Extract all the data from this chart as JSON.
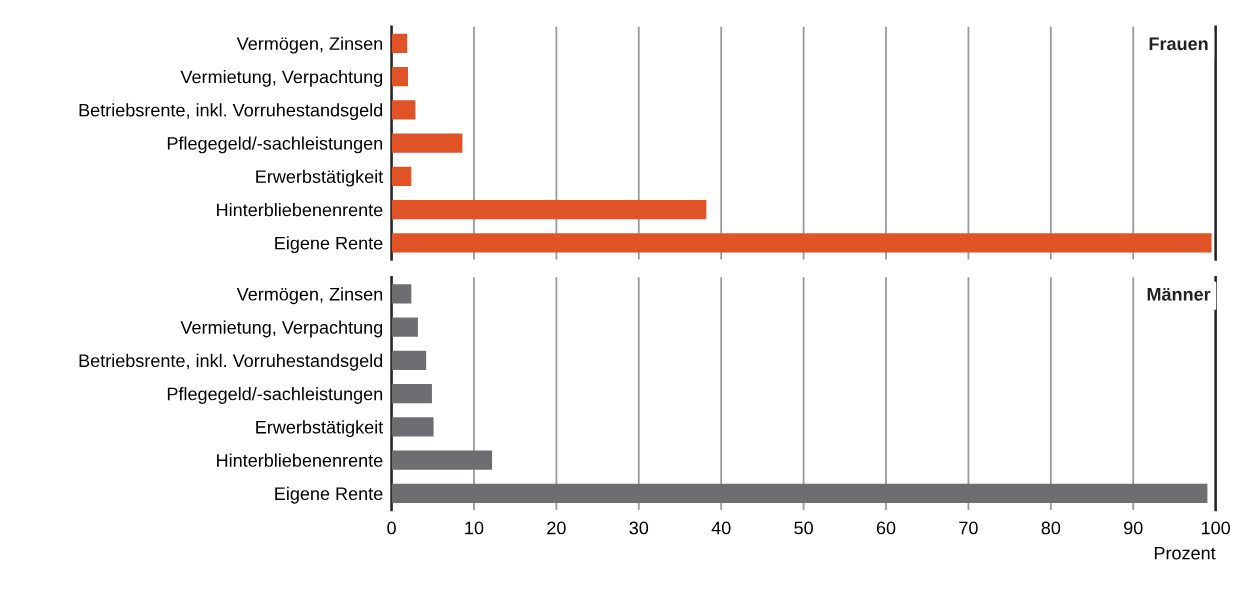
{
  "chart_data": [
    {
      "type": "bar",
      "orientation": "horizontal",
      "title": "Frauen",
      "categories": [
        "Vermögen, Zinsen",
        "Vermietung, Verpachtung",
        "Betriebsrente, inkl. Vorruhestandsgeld",
        "Pflegegeld/-sachleistungen",
        "Erwerbstätigkeit",
        "Hinterbliebenenrente",
        "Eigene Rente"
      ],
      "values": [
        1.9,
        2.0,
        2.9,
        8.6,
        2.4,
        38.2,
        99.5
      ],
      "color": "#e05327",
      "xlim": [
        0,
        100
      ],
      "xticks": [
        0,
        10,
        20,
        30,
        40,
        50,
        60,
        70,
        80,
        90,
        100
      ],
      "grid": "x",
      "tick_labels": "y"
    },
    {
      "type": "bar",
      "orientation": "horizontal",
      "title": "Männer",
      "xlabel": "Prozent",
      "categories": [
        "Vermögen, Zinsen",
        "Vermietung, Verpachtung",
        "Betriebsrente, inkl. Vorruhestandsgeld",
        "Pflegegeld/-sachleistungen",
        "Erwerbstätigkeit",
        "Hinterbliebenenrente",
        "Eigene Rente"
      ],
      "values": [
        2.4,
        3.2,
        4.2,
        4.9,
        5.1,
        12.2,
        99.0
      ],
      "color": "#6d6e71",
      "xlim": [
        0,
        100
      ],
      "xticks": [
        0,
        10,
        20,
        30,
        40,
        50,
        60,
        70,
        80,
        90,
        100
      ],
      "grid": "x"
    }
  ]
}
